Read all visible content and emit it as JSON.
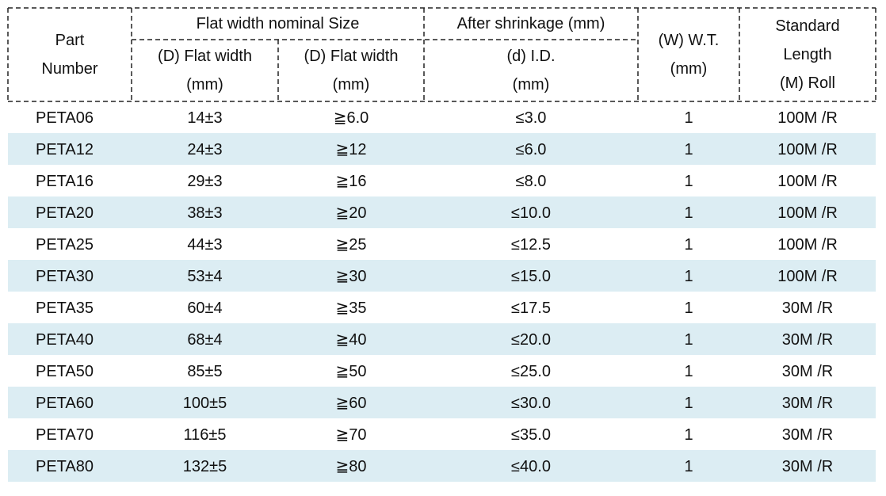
{
  "header": {
    "part_number": [
      "Part",
      "Number"
    ],
    "flat_width_nominal": "Flat width nominal Size",
    "flat_width_a": [
      "(D) Flat width",
      "(mm)"
    ],
    "flat_width_b": [
      "(D) Flat width",
      "(mm)"
    ],
    "after_shrinkage": "After shrinkage (mm)",
    "inner_diameter": [
      "(d) I.D.",
      "(mm)"
    ],
    "wall_thickness": [
      "(W) W.T.",
      "(mm)"
    ],
    "standard_length": [
      "Standard",
      "Length",
      "(M) Roll"
    ]
  },
  "rows": [
    [
      "PETA06",
      "14±3",
      "≧6.0",
      "≤3.0",
      "1",
      "100M /R"
    ],
    [
      "PETA12",
      "24±3",
      "≧12",
      "≤6.0",
      "1",
      "100M /R"
    ],
    [
      "PETA16",
      "29±3",
      "≧16",
      "≤8.0",
      "1",
      "100M /R"
    ],
    [
      "PETA20",
      "38±3",
      "≧20",
      "≤10.0",
      "1",
      "100M /R"
    ],
    [
      "PETA25",
      "44±3",
      "≧25",
      "≤12.5",
      "1",
      "100M /R"
    ],
    [
      "PETA30",
      "53±4",
      "≧30",
      "≤15.0",
      "1",
      "100M /R"
    ],
    [
      "PETA35",
      "60±4",
      "≧35",
      "≤17.5",
      "1",
      "30M /R"
    ],
    [
      "PETA40",
      "68±4",
      "≧40",
      "≤20.0",
      "1",
      "30M /R"
    ],
    [
      "PETA50",
      "85±5",
      "≧50",
      "≤25.0",
      "1",
      "30M /R"
    ],
    [
      "PETA60",
      "100±5",
      "≧60",
      "≤30.0",
      "1",
      "30M /R"
    ],
    [
      "PETA70",
      "116±5",
      "≧70",
      "≤35.0",
      "1",
      "30M /R"
    ],
    [
      "PETA80",
      "132±5",
      "≧80",
      "≤40.0",
      "1",
      "30M /R"
    ]
  ]
}
